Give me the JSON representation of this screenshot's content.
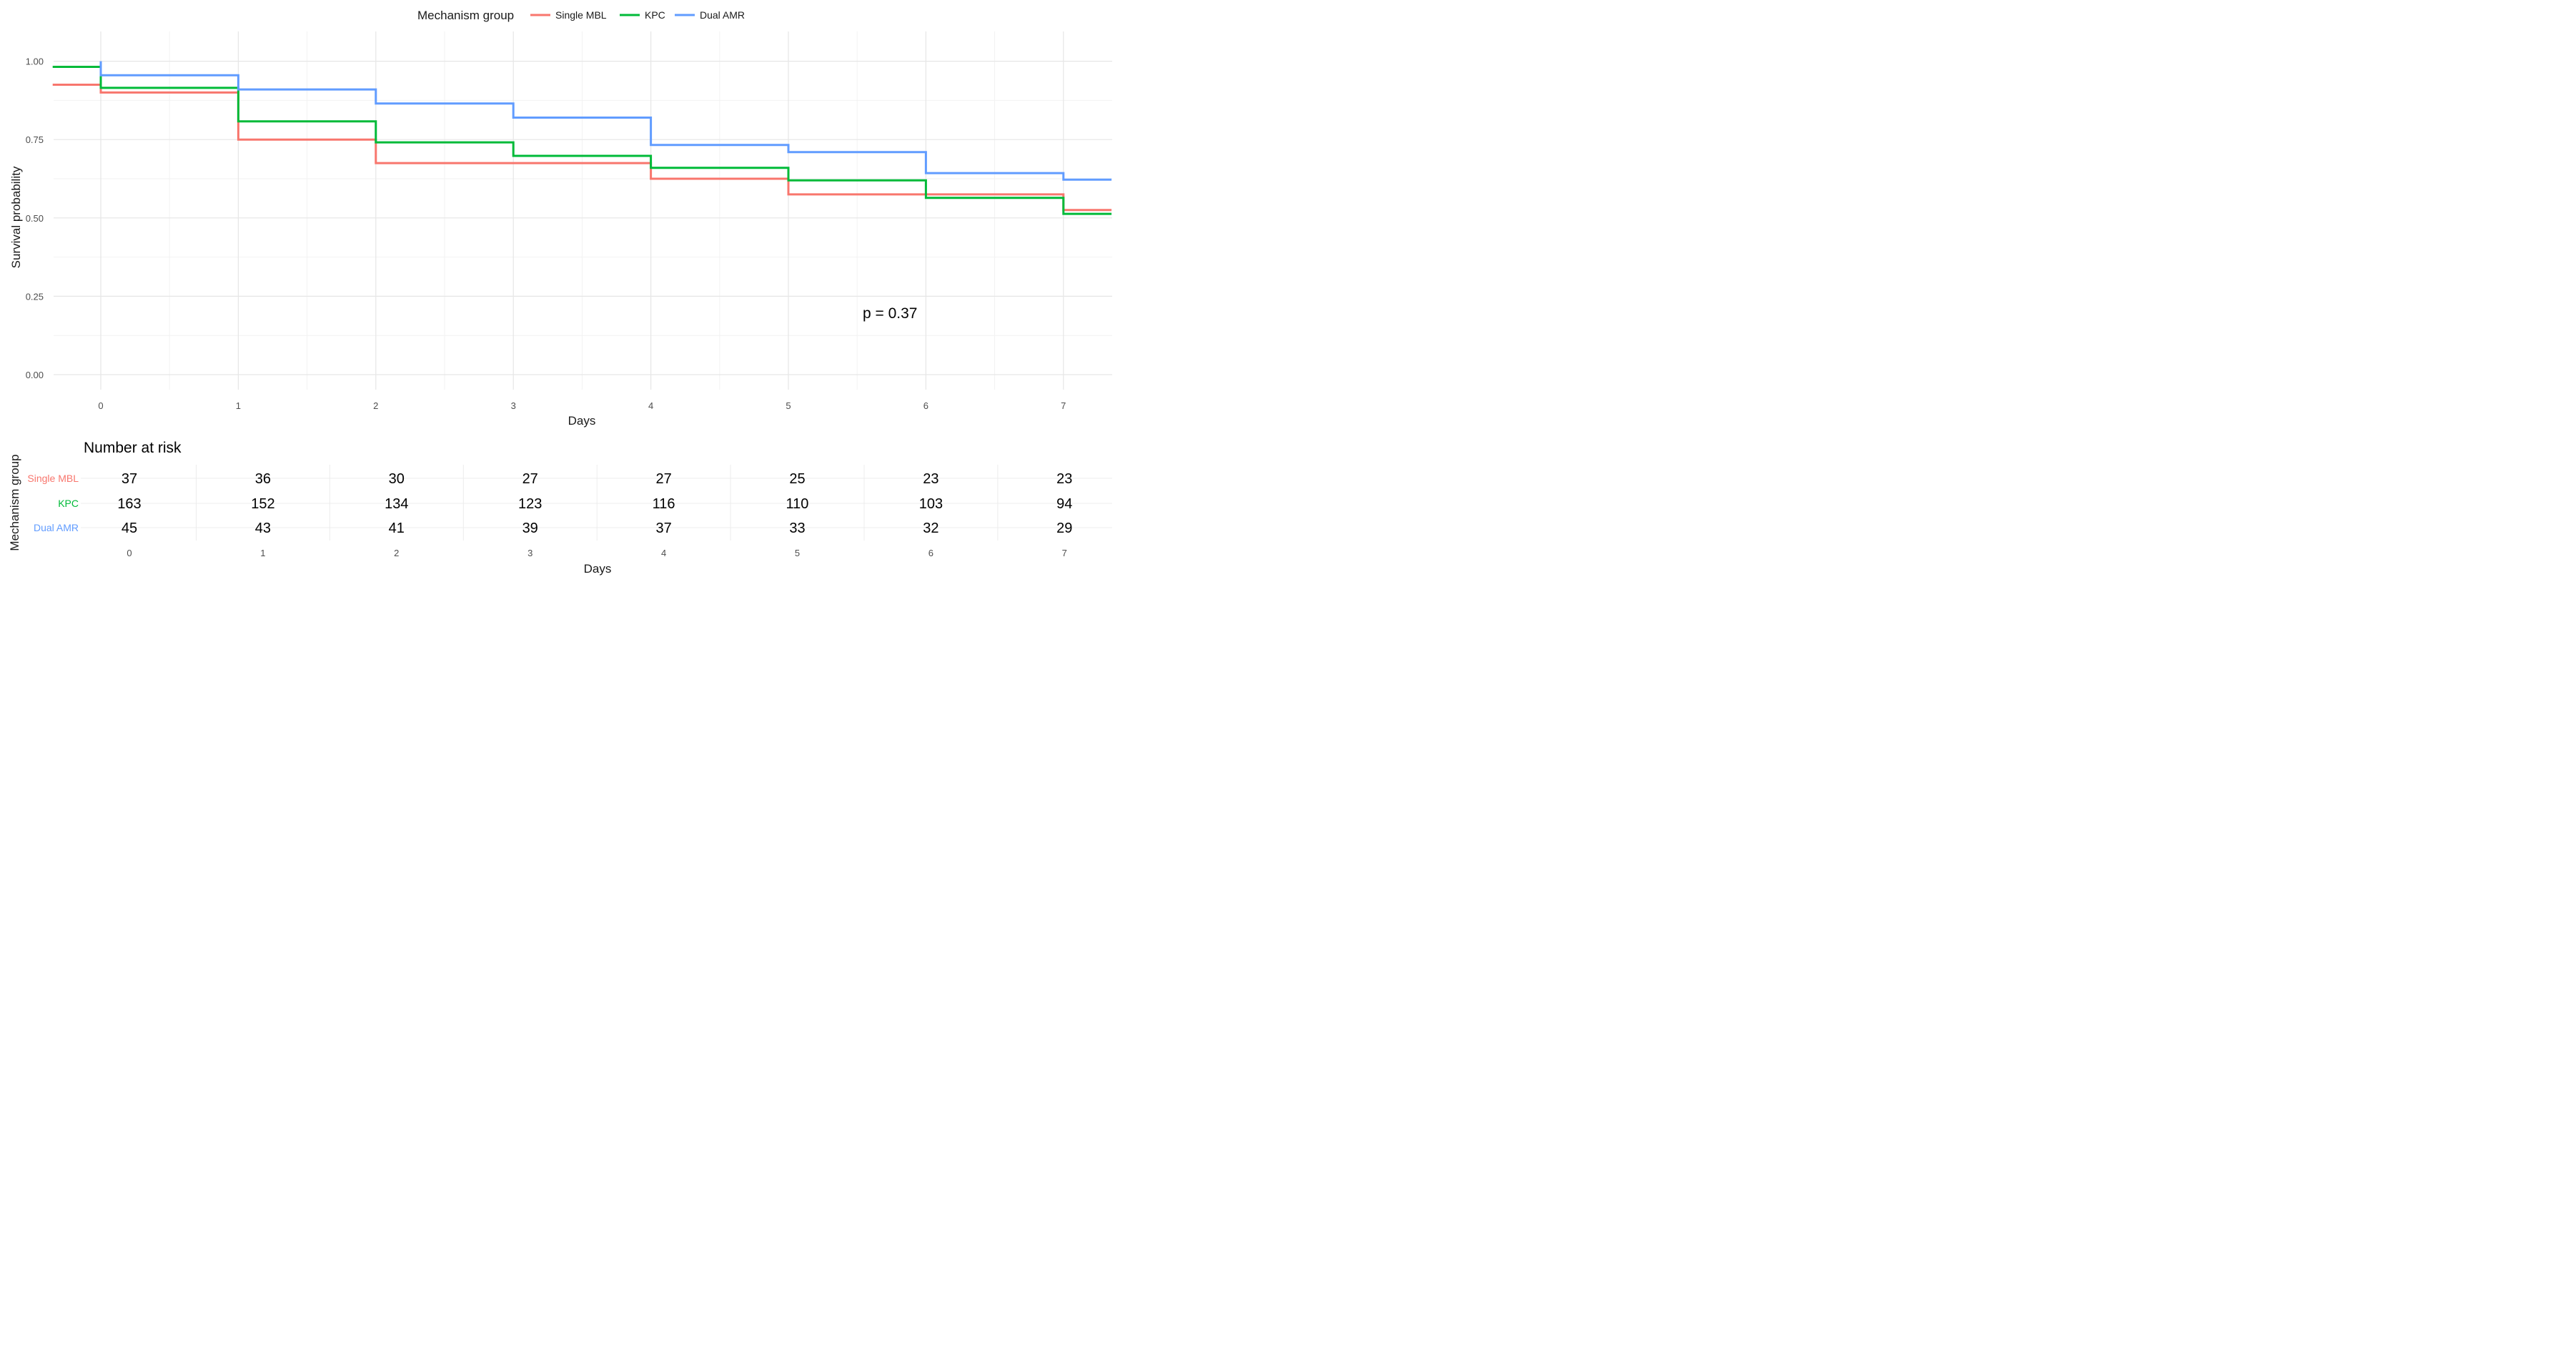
{
  "chart_data": [
    {
      "type": "line",
      "subtype": "step",
      "xlabel": "Days",
      "ylabel": "Survival probability",
      "xlim": [
        -0.35,
        7.35
      ],
      "ylim": [
        -0.03,
        1.06
      ],
      "x_ticks": [
        "0",
        "1",
        "2",
        "3",
        "4",
        "5",
        "6",
        "7"
      ],
      "y_ticks": [
        "0.00",
        "0.25",
        "0.50",
        "0.75",
        "1.00"
      ],
      "grid": true,
      "legend": {
        "title": "Mechanism group",
        "position": "top",
        "entries": [
          "Single MBL",
          "KPC",
          "Dual AMR"
        ]
      },
      "annotation": "p = 0.37",
      "series": [
        {
          "name": "Single MBL",
          "color": "#f8766d",
          "points": [
            [
              -0.35,
              0.925
            ],
            [
              0,
              0.925
            ],
            [
              0,
              0.9
            ],
            [
              1,
              0.9
            ],
            [
              1,
              0.75
            ],
            [
              2,
              0.75
            ],
            [
              2,
              0.675
            ],
            [
              3,
              0.675
            ],
            [
              4,
              0.675
            ],
            [
              4,
              0.625
            ],
            [
              5,
              0.625
            ],
            [
              5,
              0.575
            ],
            [
              6,
              0.575
            ],
            [
              7,
              0.575
            ],
            [
              7,
              0.525
            ],
            [
              7.35,
              0.525
            ]
          ]
        },
        {
          "name": "KPC",
          "color": "#00ba38",
          "points": [
            [
              -0.35,
              0.982
            ],
            [
              0,
              0.982
            ],
            [
              0,
              0.915
            ],
            [
              1,
              0.915
            ],
            [
              1,
              0.808
            ],
            [
              2,
              0.808
            ],
            [
              2,
              0.741
            ],
            [
              3,
              0.741
            ],
            [
              3,
              0.698
            ],
            [
              4,
              0.698
            ],
            [
              4,
              0.66
            ],
            [
              5,
              0.66
            ],
            [
              5,
              0.62
            ],
            [
              6,
              0.62
            ],
            [
              6,
              0.564
            ],
            [
              7,
              0.564
            ],
            [
              7,
              0.513
            ],
            [
              7.35,
              0.513
            ]
          ]
        },
        {
          "name": "Dual AMR",
          "color": "#619cff",
          "points": [
            [
              0,
              1.0
            ],
            [
              0,
              0.955
            ],
            [
              1,
              0.955
            ],
            [
              1,
              0.91
            ],
            [
              2,
              0.91
            ],
            [
              2,
              0.865
            ],
            [
              3,
              0.865
            ],
            [
              3,
              0.82
            ],
            [
              4,
              0.82
            ],
            [
              4,
              0.733
            ],
            [
              5,
              0.733
            ],
            [
              5,
              0.71
            ],
            [
              6,
              0.71
            ],
            [
              6,
              0.643
            ],
            [
              7,
              0.643
            ],
            [
              7,
              0.622
            ],
            [
              7.35,
              0.622
            ]
          ]
        }
      ]
    },
    {
      "type": "table",
      "title": "Number at risk",
      "xlabel": "Days",
      "ylabel": "Mechanism group",
      "columns": [
        "0",
        "1",
        "2",
        "3",
        "4",
        "5",
        "6",
        "7"
      ],
      "rows": [
        {
          "name": "Single MBL",
          "color": "#f8766d",
          "values": [
            "37",
            "36",
            "30",
            "27",
            "27",
            "25",
            "23",
            "23"
          ]
        },
        {
          "name": "KPC",
          "color": "#00ba38",
          "values": [
            "163",
            "152",
            "134",
            "123",
            "116",
            "110",
            "103",
            "94"
          ]
        },
        {
          "name": "Dual AMR",
          "color": "#619cff",
          "values": [
            "45",
            "43",
            "41",
            "39",
            "37",
            "33",
            "32",
            "29"
          ]
        }
      ]
    }
  ]
}
